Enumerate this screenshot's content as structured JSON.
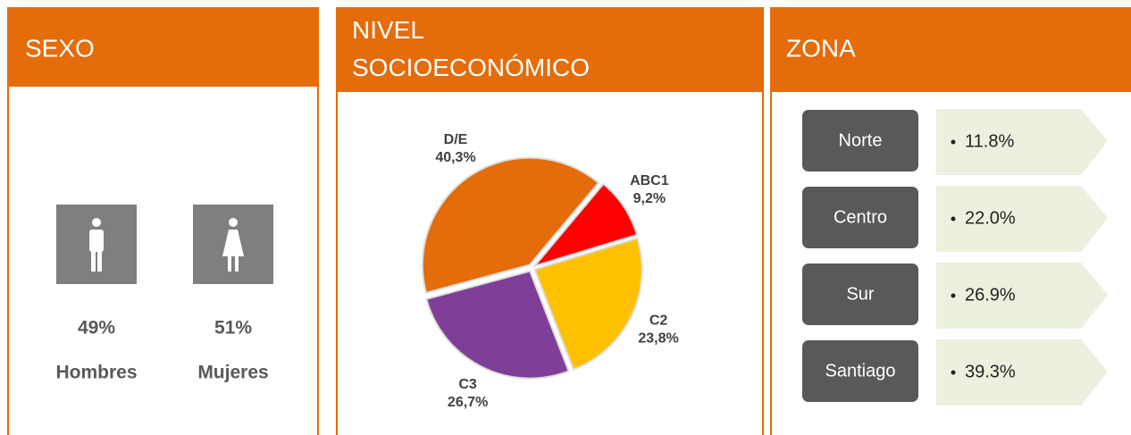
{
  "sexo": {
    "title": "SEXO",
    "items": [
      {
        "pct": "49%",
        "label": "Hombres"
      },
      {
        "pct": "51%",
        "label": "Mujeres"
      }
    ]
  },
  "chart_data": {
    "type": "pie",
    "title": "NIVEL SOCIOECONÓMICO",
    "categories": [
      "ABC1",
      "C2",
      "C3",
      "D/E"
    ],
    "values": [
      9.2,
      23.8,
      26.7,
      40.3
    ],
    "value_labels": [
      "9,2%",
      "23,8%",
      "26,7%",
      "40,3%"
    ],
    "colors": [
      "#ff0000",
      "#ffc000",
      "#7f3f98",
      "#e46c0a"
    ]
  },
  "zona": {
    "title": "ZONA",
    "rows": [
      {
        "name": "Norte",
        "pct": "11.8%"
      },
      {
        "name": "Centro",
        "pct": "22.0%"
      },
      {
        "name": "Sur",
        "pct": "26.9%"
      },
      {
        "name": "Santiago",
        "pct": "39.3%"
      }
    ]
  }
}
